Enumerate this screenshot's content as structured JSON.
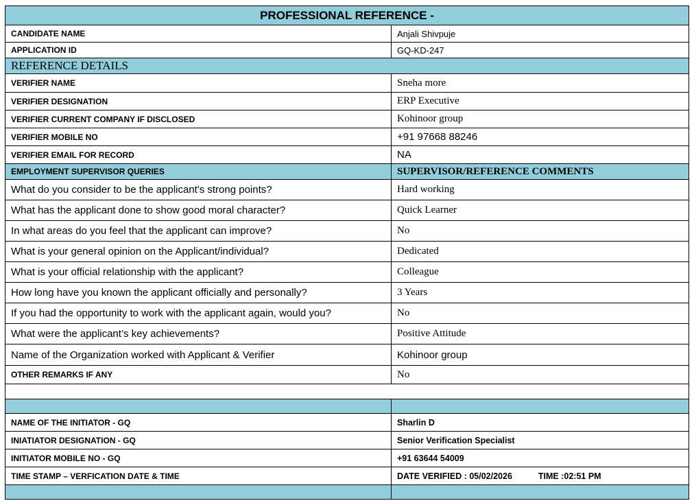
{
  "title": "PROFESSIONAL REFERENCE -",
  "candidate": [
    {
      "label": "CANDIDATE  NAME",
      "value": "Anjali Shivpuje"
    },
    {
      "label": "APPLICATION ID",
      "value": "GQ-KD-247"
    }
  ],
  "reference_header": "REFERENCE DETAILS",
  "verifier": [
    {
      "label": "VERIFIER NAME",
      "value": "Sneha more"
    },
    {
      "label": "VERIFIER DESIGNATION",
      "value": "ERP Executive"
    },
    {
      "label": "VERIFIER CURRENT COMPANY IF DISCLOSED",
      "value": "Kohinoor group"
    },
    {
      "label": "VERIFIER MOBILE NO",
      "value": "+91 97668 88246"
    },
    {
      "label": "VERIFIER EMAIL FOR RECORD",
      "value": "NA"
    }
  ],
  "queries_header": {
    "left": "EMPLOYMENT SUPERVISOR QUERIES",
    "right": "SUPERVISOR/REFERENCE COMMENTS"
  },
  "queries": [
    {
      "label": "What do you consider to be the applicant's strong points?",
      "value": "Hard working"
    },
    {
      "label": "What has the applicant done to show good moral character?",
      "value": "Quick Learner"
    },
    {
      "label": "In what areas do you feel that the applicant can improve?",
      "value": "No"
    },
    {
      "label": "What is your general opinion on the Applicant/individual?",
      "value": "Dedicated"
    },
    {
      "label": "What is your official relationship with the applicant?",
      "value": "Colleague"
    },
    {
      "label": "How long have you known the applicant officially and personally?",
      "value": "3 Years"
    },
    {
      "label": "If you had the opportunity to work with the applicant again, would you?",
      "value": "No"
    },
    {
      "label": "What were the applicant’s key achievements?",
      "value": "Positive Attitude"
    },
    {
      "label": "Name of the Organization worked with Applicant & Verifier",
      "value": "Kohinoor group"
    }
  ],
  "other_remarks": {
    "label": "OTHER REMARKS IF ANY",
    "value": "No"
  },
  "initiator": [
    {
      "label": "NAME OF THE INITIATOR - GQ",
      "value": "Sharlin D"
    },
    {
      "label": "INIATIATOR DESIGNATION - GQ",
      "value": "Senior Verification Specialist"
    },
    {
      "label": "INITIATOR MOBILE NO - GQ",
      "value": "+91 63644 54009"
    },
    {
      "label": "TIME STAMP – VERFICATION DATE & TIME",
      "value": "DATE VERIFIED : 05/02/2026",
      "time": "TIME :02:51 PM"
    }
  ],
  "colors": {
    "header_fill": "#92cddc",
    "border": "#000000"
  }
}
